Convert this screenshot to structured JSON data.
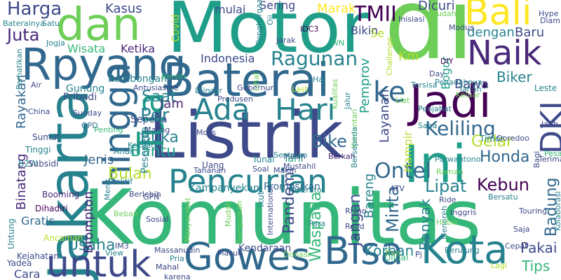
{
  "palette": [
    "#440154",
    "#482878",
    "#3e4989",
    "#31688e",
    "#26828e",
    "#1f9e89",
    "#35b779",
    "#6ece58",
    "#b5de2b",
    "#fde725"
  ],
  "words": [
    {
      "text": "Komunitas",
      "color": "#35b779"
    },
    {
      "text": "Listrik",
      "color": "#3e4989"
    },
    {
      "text": "Motor",
      "color": "#1f9e89"
    },
    {
      "text": "di",
      "color": "#6ece58"
    },
    {
      "text": "Baterai",
      "color": "#31688e"
    },
    {
      "text": "Jakarta",
      "color": "#26828e"
    },
    {
      "text": "Rpyang",
      "color": "#31688e"
    },
    {
      "text": "dan",
      "color": "#6ece58"
    },
    {
      "text": "Ini",
      "color": "#1f9e89"
    },
    {
      "text": "Gowes",
      "color": "#31688e"
    },
    {
      "text": "Bisa",
      "color": "#31688e"
    },
    {
      "text": "Kota",
      "color": "#26828e"
    },
    {
      "text": "Jadi",
      "color": "#440154"
    },
    {
      "text": "untuk",
      "color": "#3e4989"
    },
    {
      "text": "Pencurian",
      "color": "#26828e"
    },
    {
      "text": "hingga",
      "color": "#31688e"
    },
    {
      "text": "Ada",
      "color": "#26828e"
    },
    {
      "text": "Hari",
      "color": "#26828e"
    },
    {
      "text": "Tua",
      "color": "#1f9e89"
    },
    {
      "text": "Naik",
      "color": "#482878"
    },
    {
      "text": "Bali",
      "color": "#fde725"
    },
    {
      "text": "ke",
      "color": "#31688e"
    },
    {
      "text": "DKI",
      "color": "#3e4989"
    },
    {
      "text": "Harga",
      "color": "#3e4989"
    },
    {
      "text": "Kasus",
      "color": "#3e4989"
    },
    {
      "text": "TMII",
      "color": "#440154"
    },
    {
      "text": "Juta",
      "color": "#482878"
    },
    {
      "text": "Ketika",
      "color": "#482878"
    },
    {
      "text": "Ragunan",
      "color": "#26828e"
    },
    {
      "text": "Indonesia",
      "color": "#3e4989"
    },
    {
      "text": "Keliling",
      "color": "#31688e"
    },
    {
      "text": "Ontel",
      "color": "#31688e"
    },
    {
      "text": "Kebun",
      "color": "#440154"
    },
    {
      "text": "Bike",
      "color": "#31688e"
    },
    {
      "text": "Lipat",
      "color": "#26828e"
    },
    {
      "text": "Honda",
      "color": "#31688e"
    },
    {
      "text": "Gelar",
      "color": "#b5de2b"
    },
    {
      "text": "Bantu",
      "color": "#1f9e89"
    },
    {
      "text": "Buka",
      "color": "#26828e"
    },
    {
      "text": "Per",
      "color": "#26828e"
    },
    {
      "text": "Saat",
      "color": "#26828e"
    },
    {
      "text": "Jam",
      "color": "#482878"
    },
    {
      "text": "Jenis",
      "color": "#31688e"
    },
    {
      "text": "Bulan",
      "color": "#b5de2b"
    },
    {
      "text": "Usaha",
      "color": "#26828e"
    },
    {
      "text": "Korban",
      "color": "#26828e"
    },
    {
      "text": "Minta",
      "color": "#31688e"
    },
    {
      "text": "Pandemi",
      "color": "#3e4989"
    },
    {
      "text": "Jangan",
      "color": "#3e4989"
    },
    {
      "text": "Bareng",
      "color": "#26828e"
    },
    {
      "text": "Waspada",
      "color": "#35b779"
    },
    {
      "text": "Pakai",
      "color": "#3e4989"
    },
    {
      "text": "Tips",
      "color": "#35b779"
    },
    {
      "text": "Banyak",
      "color": "#26828e"
    },
    {
      "text": "Badung",
      "color": "#31688e"
    },
    {
      "text": "Biker",
      "color": "#26828e"
    },
    {
      "text": "Bawa",
      "color": "#3e4989"
    },
    {
      "text": "Layanan",
      "color": "#3e4989"
    },
    {
      "text": "Pemprov",
      "color": "#1f9e89"
    },
    {
      "text": "Bogor",
      "color": "#1f9e89"
    },
    {
      "text": "dengan",
      "color": "#26828e"
    },
    {
      "text": "Baru",
      "color": "#3e4989"
    },
    {
      "text": "Dicuri",
      "color": "#3e4989"
    },
    {
      "text": "Sering",
      "color": "#3e4989"
    },
    {
      "text": "Marak",
      "color": "#fde725"
    },
    {
      "text": "mulai",
      "color": "#3e4989"
    },
    {
      "text": "Bikin",
      "color": "#3e4989"
    },
    {
      "text": "Wisata",
      "color": "#35b779"
    },
    {
      "text": "Rombongan",
      "color": "#26828e"
    },
    {
      "text": "Gunung",
      "color": "#26828e"
    },
    {
      "text": "Rayakan",
      "color": "#31688e"
    },
    {
      "text": "Binatang",
      "color": "#482878"
    },
    {
      "text": "Brompton",
      "color": "#482878"
    },
    {
      "text": "Kampanyekan",
      "color": "#26828e"
    },
    {
      "text": "Promosikan",
      "color": "#31688e"
    },
    {
      "text": "Kendaraan",
      "color": "#3e4989"
    },
    {
      "text": "Hampir",
      "color": "#b5de2b"
    },
    {
      "text": "Km",
      "color": "#b5de2b"
    },
    {
      "text": "Se",
      "color": "#b5de2b"
    },
    {
      "text": "Covid",
      "color": "#b5de2b"
    },
    {
      "text": "Pribadi",
      "color": "#3e4989"
    },
    {
      "text": "Sepeda",
      "color": "#3e4989"
    },
    {
      "text": "Pesepeda",
      "color": "#26828e"
    },
    {
      "text": "Gratis",
      "color": "#31688e"
    },
    {
      "text": "Cara",
      "color": "#3e4989"
    },
    {
      "text": "Yadea",
      "color": "#3e4989"
    },
    {
      "text": "Untung",
      "color": "#26828e"
    },
    {
      "text": "Kejahatan",
      "color": "#3e4989"
    },
    {
      "text": "Ancaman",
      "color": "#b5de2b"
    },
    {
      "text": "Dihadiri",
      "color": "#440154"
    },
    {
      "text": "Booming",
      "color": "#482878"
    },
    {
      "text": "B2W",
      "color": "#26828e"
    },
    {
      "text": "Subsidi",
      "color": "#3e4989"
    },
    {
      "text": "Tinggi",
      "color": "#26828e"
    },
    {
      "text": "Sumut",
      "color": "#3e4989"
    },
    {
      "text": "OPD",
      "color": "#31688e"
    },
    {
      "text": "Sunday",
      "color": "#3e4989"
    },
    {
      "text": "China",
      "color": "#3e4989"
    },
    {
      "text": "Penting",
      "color": "#35b779"
    },
    {
      "text": "Kekuatan",
      "color": "#26828e"
    },
    {
      "text": "Maling",
      "color": "#3e4989"
    },
    {
      "text": "Molis",
      "color": "#3e4989"
    },
    {
      "text": "Uang",
      "color": "#3e4989"
    },
    {
      "text": "Anak",
      "color": "#26828e"
    },
    {
      "text": "Tahanan",
      "color": "#3e4989"
    },
    {
      "text": "Soal",
      "color": "#3e4989"
    },
    {
      "text": "Tunai",
      "color": "#26828e"
    },
    {
      "text": "Tarif",
      "color": "#1f9e89"
    },
    {
      "text": "Makin",
      "color": "#3e4989"
    },
    {
      "text": "Mustahil",
      "color": "#3e4989"
    },
    {
      "text": "Masih",
      "color": "#3e4989"
    },
    {
      "text": "Berkah",
      "color": "#482878"
    },
    {
      "text": "Seniman",
      "color": "#26828e"
    },
    {
      "text": "Purwantono",
      "color": "#26828e"
    },
    {
      "text": "Timor",
      "color": "#26828e"
    },
    {
      "text": "Ooredoo",
      "color": "#3e4989"
    },
    {
      "text": "Sapa",
      "color": "#26828e"
    },
    {
      "text": "Pesan",
      "color": "#35b779"
    },
    {
      "text": "Terima",
      "color": "#3e4989"
    },
    {
      "text": "Bagi",
      "color": "#3e4989"
    },
    {
      "text": "Leste",
      "color": "#26828e"
    },
    {
      "text": "Penjahat",
      "color": "#26828e"
    },
    {
      "text": "Tahun",
      "color": "#26828e"
    },
    {
      "text": "Keluar",
      "color": "#6ece58"
    },
    {
      "text": "Tersisa",
      "color": "#26828e"
    },
    {
      "text": "Penadahnya",
      "color": "#26828e"
    },
    {
      "text": "Komentari",
      "color": "#6ece58"
    },
    {
      "text": "Jauh",
      "color": "#3e4989"
    },
    {
      "text": "Satu",
      "color": "#26828e"
    },
    {
      "text": "Baterainya",
      "color": "#26828e"
    },
    {
      "text": "Jogja",
      "color": "#26828e"
    },
    {
      "text": "Perhatikan",
      "color": "#26828e"
    },
    {
      "text": "Air",
      "color": "#3e4989"
    },
    {
      "text": "Bersih",
      "color": "#35b779"
    },
    {
      "text": "Diincar",
      "color": "#26828e"
    },
    {
      "text": "Gubernur",
      "color": "#3e4989"
    },
    {
      "text": "Antusiasme",
      "color": "#3e4989"
    },
    {
      "text": "Produsen",
      "color": "#3e4989"
    },
    {
      "text": "Hal",
      "color": "#26828e"
    },
    {
      "text": "Last",
      "color": "#b5de2b"
    },
    {
      "text": "Jarak",
      "color": "#3e4989"
    },
    {
      "text": "Penghargaan",
      "color": "#26828e"
    },
    {
      "text": "IDC3",
      "color": "#440154"
    },
    {
      "text": "Inisiasi",
      "color": "#3e4989"
    },
    {
      "text": "Modus",
      "color": "#3e4989"
    },
    {
      "text": "DIY",
      "color": "#440154"
    },
    {
      "text": "Day",
      "color": "#3e4989"
    },
    {
      "text": "Sudah",
      "color": "#6ece58"
    },
    {
      "text": "Hype",
      "color": "#3e4989"
    },
    {
      "text": "Diam",
      "color": "#3e4989"
    },
    {
      "text": "Challenge",
      "color": "#b5de2b"
    },
    {
      "text": "GPN",
      "color": "#3e4989"
    },
    {
      "text": "Sosial",
      "color": "#3e4989"
    },
    {
      "text": "Masyarakat",
      "color": "#6ece58"
    },
    {
      "text": "Efektif",
      "color": "#26828e"
    },
    {
      "text": "Berlebih",
      "color": "#3e4989"
    },
    {
      "text": "Menit",
      "color": "#26828e"
    },
    {
      "text": "Beban",
      "color": "#6ece58"
    },
    {
      "text": "IM3",
      "color": "#3e4989"
    },
    {
      "text": "View",
      "color": "#26828e"
    },
    {
      "text": "Massanudin",
      "color": "#3e4989"
    },
    {
      "text": "Pria",
      "color": "#26828e"
    },
    {
      "text": "Mahal",
      "color": "#3e4989"
    },
    {
      "text": "karena",
      "color": "#3e4989"
    },
    {
      "text": "Ikut",
      "color": "#26828e"
    },
    {
      "text": "International",
      "color": "#3e4989"
    },
    {
      "text": "Mudah",
      "color": "#6ece58"
    },
    {
      "text": "Sampaikan",
      "color": "#6ece58"
    },
    {
      "text": "Masuk",
      "color": "#3e4989"
    },
    {
      "text": "Operator",
      "color": "#26828e"
    },
    {
      "text": "Donasi",
      "color": "#6ece58"
    },
    {
      "text": "Para",
      "color": "#26828e"
    },
    {
      "text": "Rivan",
      "color": "#3e4989"
    },
    {
      "text": "Road",
      "color": "#3e4989"
    },
    {
      "text": "ATV",
      "color": "#3e4989"
    },
    {
      "text": "Ride",
      "color": "#3e4989"
    },
    {
      "text": "Habis",
      "color": "#6ece58"
    },
    {
      "text": "Inggris",
      "color": "#3e4989"
    },
    {
      "text": "Menoreh",
      "color": "#26828e"
    },
    {
      "text": "Berujung",
      "color": "#26828e"
    },
    {
      "text": "Cepat",
      "color": "#3e4989"
    },
    {
      "text": "Tren",
      "color": "#6ece58"
    },
    {
      "text": "Lagi",
      "color": "#b5de2b"
    },
    {
      "text": "Dijual",
      "color": "#35b779"
    },
    {
      "text": "Pj",
      "color": "#3e4989"
    },
    {
      "text": "Touring",
      "color": "#3e4989"
    },
    {
      "text": "Bersatu",
      "color": "#26828e"
    },
    {
      "text": "Kolaborasi",
      "color": "#26828e"
    },
    {
      "text": "Saja",
      "color": "#3e4989"
    },
    {
      "text": "Raman",
      "color": "#6ece58"
    },
    {
      "text": "Bersepeda",
      "color": "#26828e"
    },
    {
      "text": "Jalur",
      "color": "#26828e"
    },
    {
      "text": "Liat",
      "color": "#6ece58"
    },
    {
      "text": "WN",
      "color": "#35b779"
    },
    {
      "text": "Oji",
      "color": "#26828e"
    },
    {
      "text": "Lihat",
      "color": "#6ece58"
    },
    {
      "text": "Kualitas",
      "color": "#6ece58"
    }
  ]
}
